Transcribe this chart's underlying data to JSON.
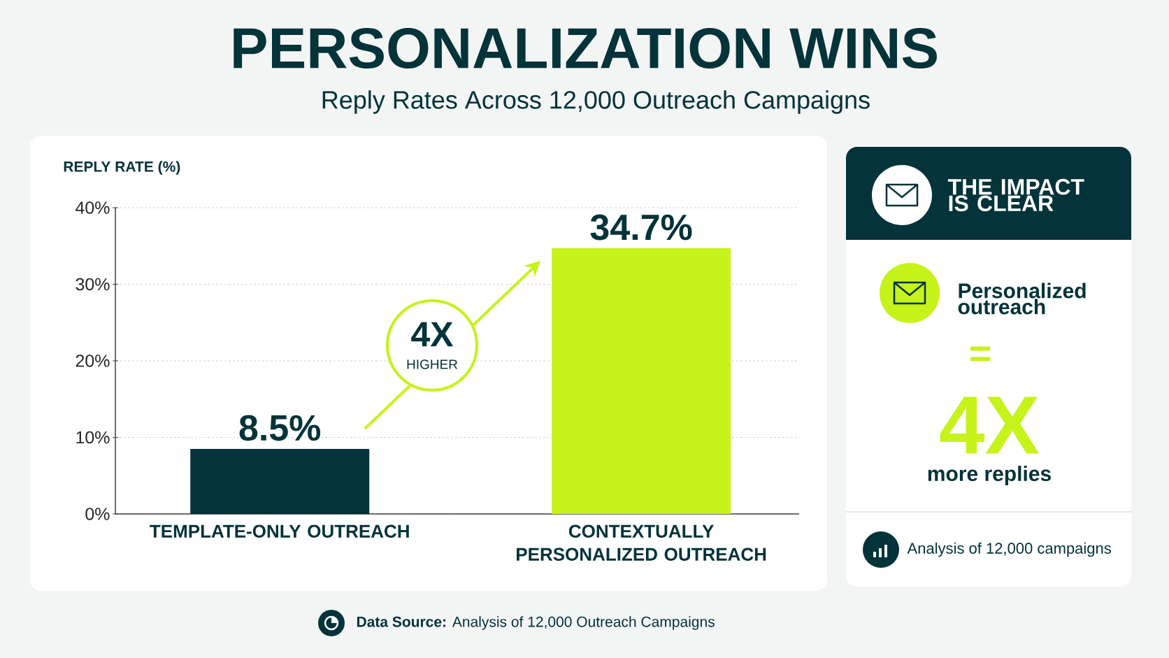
{
  "chart_data": [
    {
      "type": "bar",
      "title": "PERSONALIZATION WINS",
      "subtitle": "Reply Rates Across 12,000 Outreach Campaigns",
      "ylabel": "REPLY RATE (%)",
      "categories": [
        "TEMPLATE-ONLY OUTREACH",
        "CONTEXTUALLY PERSONALIZED OUTREACH"
      ],
      "values": [
        8.5,
        34.7
      ],
      "colors": [
        "#04333a",
        "#c6f31a"
      ],
      "value_labels": [
        "8.5%",
        "34.7%"
      ],
      "ylim": [
        0,
        40
      ],
      "yticks": [
        {
          "value": 0,
          "label": "0%"
        },
        {
          "value": 10,
          "label": "10%"
        },
        {
          "value": 20,
          "label": "20%"
        },
        {
          "value": 30,
          "label": "30%"
        },
        {
          "value": 40,
          "label": "40%"
        }
      ],
      "grid": "y",
      "annotations": [
        "4X",
        "HIGHER",
        "**Data Source:** Analysis of 12,000 Outreach Campaigns"
      ]
    },
    {
      "type": "other",
      "title": "THE IMPACT IS CLEAR",
      "annotations": [
        "Personalized outreach",
        "=",
        "4X",
        "more replies",
        "Analysis of 12,000 campaigns"
      ]
    }
  ]
}
